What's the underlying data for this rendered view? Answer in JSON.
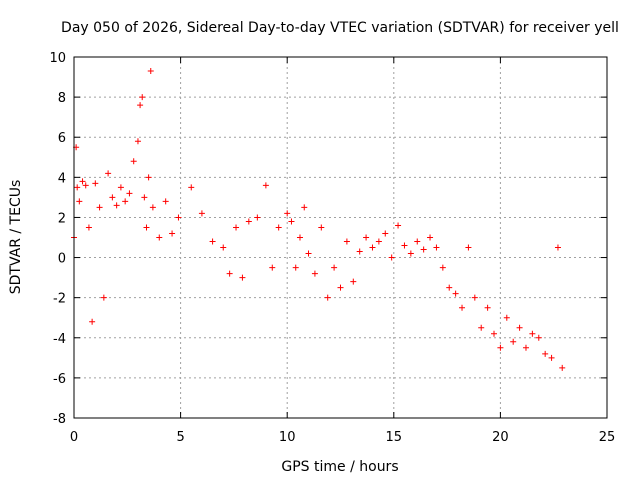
{
  "chart_data": {
    "type": "scatter",
    "title": "Day 050 of 2026, Sidereal Day-to-day VTEC variation (SDTVAR) for receiver yell",
    "xlabel": "GPS time / hours",
    "ylabel": "SDTVAR / TECUs",
    "xlim": [
      0,
      25
    ],
    "ylim": [
      -8,
      10
    ],
    "xticks": [
      0,
      5,
      10,
      15,
      20,
      25
    ],
    "yticks": [
      -8,
      -6,
      -4,
      -2,
      0,
      2,
      4,
      6,
      8,
      10
    ],
    "xtick_labels": [
      "0",
      "5",
      "10",
      "15",
      "20",
      "25"
    ],
    "ytick_labels": [
      "-8",
      "-6",
      "-4",
      "-2",
      "0",
      "2",
      "4",
      "6",
      "8",
      "10"
    ],
    "grid": true,
    "marker": "+",
    "marker_color": "#ff0000",
    "series": [
      {
        "name": "SDTVAR",
        "x": [
          0.0,
          0.1,
          0.15,
          0.25,
          0.4,
          0.55,
          0.7,
          0.85,
          1.0,
          1.2,
          1.4,
          1.6,
          1.8,
          2.0,
          2.2,
          2.4,
          2.6,
          2.8,
          3.0,
          3.1,
          3.2,
          3.3,
          3.4,
          3.5,
          3.6,
          3.7,
          4.0,
          4.3,
          4.6,
          4.9,
          5.5,
          6.0,
          6.5,
          7.0,
          7.3,
          7.6,
          7.9,
          8.2,
          8.6,
          9.0,
          9.3,
          9.6,
          10.0,
          10.2,
          10.4,
          10.6,
          10.8,
          11.0,
          11.3,
          11.6,
          11.9,
          12.2,
          12.5,
          12.8,
          13.1,
          13.4,
          13.7,
          14.0,
          14.3,
          14.6,
          14.9,
          15.2,
          15.5,
          15.8,
          16.1,
          16.4,
          16.7,
          17.0,
          17.3,
          17.6,
          17.9,
          18.2,
          18.5,
          18.8,
          19.1,
          19.4,
          19.7,
          20.0,
          20.3,
          20.6,
          20.9,
          21.2,
          21.5,
          21.8,
          22.1,
          22.4,
          22.7,
          22.9
        ],
        "y": [
          1.0,
          5.5,
          3.5,
          2.8,
          3.8,
          3.6,
          1.5,
          -3.2,
          3.7,
          2.5,
          -2.0,
          4.2,
          3.0,
          2.6,
          3.5,
          2.8,
          3.2,
          4.8,
          5.8,
          7.6,
          8.0,
          3.0,
          1.5,
          4.0,
          9.3,
          2.5,
          1.0,
          2.8,
          1.2,
          2.0,
          3.5,
          2.2,
          0.8,
          0.5,
          -0.8,
          1.5,
          -1.0,
          1.8,
          2.0,
          3.6,
          -0.5,
          1.5,
          2.2,
          1.8,
          -0.5,
          1.0,
          2.5,
          0.2,
          -0.8,
          1.5,
          -2.0,
          -0.5,
          -1.5,
          0.8,
          -1.2,
          0.3,
          1.0,
          0.5,
          0.8,
          1.2,
          0.0,
          1.6,
          0.6,
          0.2,
          0.8,
          0.4,
          1.0,
          0.5,
          -0.5,
          -1.5,
          -1.8,
          -2.5,
          0.5,
          -2.0,
          -3.5,
          -2.5,
          -3.8,
          -4.5,
          -3.0,
          -4.2,
          -3.5,
          -4.5,
          -3.8,
          -4.0,
          -4.8,
          -5.0,
          0.5,
          -5.5
        ]
      }
    ]
  }
}
